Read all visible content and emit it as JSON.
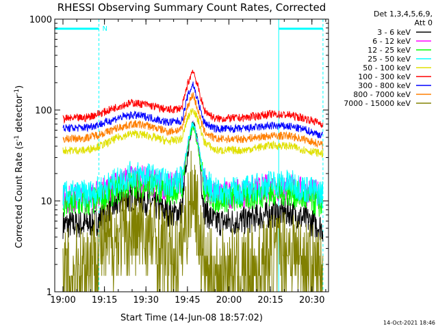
{
  "chart_data": {
    "type": "line",
    "title": "RHESSI Observing Summary Count Rates, Corrected",
    "xlabel": "Start Time (14-Jun-08 18:57:02)",
    "ylabel_main": "Corrected Count Rate (s",
    "ylabel_sup1": "-1",
    "ylabel_mid": " detector",
    "ylabel_sup2": "-1",
    "ylabel_end": ")",
    "y_scale": "log",
    "ylim": [
      1,
      1000
    ],
    "xlim": [
      "18:57:02",
      "20:36:00"
    ],
    "x_ticks": [
      "19:00",
      "19:15",
      "19:30",
      "19:45",
      "20:00",
      "20:15",
      "20:30"
    ],
    "y_ticks": [
      "1",
      "10",
      "100",
      "1000"
    ],
    "legend_header": [
      "Det 1,3,4,5,6,9,",
      "Att 0"
    ],
    "legend_position": "right",
    "grid": false,
    "footer_timestamp": "14-Oct-2021 18:46",
    "attenuator_flag": "N",
    "night_intervals": [
      [
        "18:57:02",
        "19:13:00"
      ],
      [
        "20:18:00",
        "20:34:00"
      ]
    ],
    "series": [
      {
        "name": "3 - 6 keV",
        "color": "#000000",
        "points": [
          [
            "19:00",
            5.5
          ],
          [
            "19:08",
            5.5
          ],
          [
            "19:12",
            5.8
          ],
          [
            "19:18",
            8.5
          ],
          [
            "19:25",
            11
          ],
          [
            "19:30",
            10
          ],
          [
            "19:36",
            8
          ],
          [
            "19:40",
            7
          ],
          [
            "19:43",
            8
          ],
          [
            "19:45",
            30
          ],
          [
            "19:47",
            82
          ],
          [
            "19:49",
            40
          ],
          [
            "19:51",
            8
          ],
          [
            "19:55",
            5.8
          ],
          [
            "20:05",
            6
          ],
          [
            "20:15",
            7.2
          ],
          [
            "20:22",
            7.5
          ],
          [
            "20:28",
            6.2
          ],
          [
            "20:34",
            5
          ]
        ]
      },
      {
        "name": "6 - 12 keV",
        "color": "#ff00ff",
        "points": [
          [
            "19:00",
            10.5
          ],
          [
            "19:10",
            11
          ],
          [
            "19:18",
            14
          ],
          [
            "19:25",
            18
          ],
          [
            "19:30",
            17
          ],
          [
            "19:38",
            14
          ],
          [
            "19:43",
            16
          ],
          [
            "19:45",
            40
          ],
          [
            "19:47",
            70
          ],
          [
            "19:49",
            40
          ],
          [
            "19:51",
            16
          ],
          [
            "19:55",
            11.5
          ],
          [
            "20:05",
            12
          ],
          [
            "20:15",
            14
          ],
          [
            "20:22",
            14
          ],
          [
            "20:28",
            12.5
          ],
          [
            "20:34",
            11.5
          ]
        ]
      },
      {
        "name": "12 - 25 keV",
        "color": "#00ff00",
        "points": [
          [
            "19:00",
            9
          ],
          [
            "19:10",
            9.5
          ],
          [
            "19:18",
            12.5
          ],
          [
            "19:25",
            15.5
          ],
          [
            "19:30",
            15
          ],
          [
            "19:38",
            12.5
          ],
          [
            "19:43",
            14
          ],
          [
            "19:45",
            38
          ],
          [
            "19:47",
            68
          ],
          [
            "19:49",
            38
          ],
          [
            "19:51",
            14
          ],
          [
            "19:55",
            10.5
          ],
          [
            "20:05",
            11
          ],
          [
            "20:15",
            12.5
          ],
          [
            "20:22",
            12.5
          ],
          [
            "20:28",
            10.5
          ],
          [
            "20:34",
            9
          ]
        ]
      },
      {
        "name": "25 - 50 keV",
        "color": "#00ffff",
        "points": [
          [
            "19:00",
            11.5
          ],
          [
            "19:10",
            12
          ],
          [
            "19:18",
            15.5
          ],
          [
            "19:25",
            19.5
          ],
          [
            "19:30",
            19
          ],
          [
            "19:38",
            15.5
          ],
          [
            "19:43",
            17
          ],
          [
            "19:45",
            42
          ],
          [
            "19:47",
            75
          ],
          [
            "19:49",
            42
          ],
          [
            "19:51",
            17
          ],
          [
            "19:55",
            12.5
          ],
          [
            "20:05",
            13
          ],
          [
            "20:15",
            15.5
          ],
          [
            "20:22",
            15.5
          ],
          [
            "20:28",
            13.5
          ],
          [
            "20:34",
            12
          ]
        ]
      },
      {
        "name": "50 - 100 keV",
        "color": "#e0e000",
        "points": [
          [
            "19:00",
            36
          ],
          [
            "19:08",
            36
          ],
          [
            "19:15",
            42
          ],
          [
            "19:20",
            50
          ],
          [
            "19:25",
            55
          ],
          [
            "19:30",
            53
          ],
          [
            "19:38",
            45
          ],
          [
            "19:43",
            48
          ],
          [
            "19:45",
            80
          ],
          [
            "19:47",
            105
          ],
          [
            "19:49",
            75
          ],
          [
            "19:51",
            45
          ],
          [
            "19:55",
            36
          ],
          [
            "20:05",
            36
          ],
          [
            "20:15",
            41
          ],
          [
            "20:22",
            40
          ],
          [
            "20:28",
            36
          ],
          [
            "20:34",
            33
          ]
        ]
      },
      {
        "name": "100 - 300 keV",
        "color": "#ff0000",
        "points": [
          [
            "19:00",
            80
          ],
          [
            "19:08",
            82
          ],
          [
            "19:15",
            95
          ],
          [
            "19:20",
            110
          ],
          [
            "19:25",
            120
          ],
          [
            "19:30",
            115
          ],
          [
            "19:38",
            100
          ],
          [
            "19:43",
            105
          ],
          [
            "19:45",
            190
          ],
          [
            "19:47",
            280
          ],
          [
            "19:49",
            170
          ],
          [
            "19:51",
            100
          ],
          [
            "19:55",
            80
          ],
          [
            "20:05",
            82
          ],
          [
            "20:15",
            90
          ],
          [
            "20:22",
            88
          ],
          [
            "20:28",
            80
          ],
          [
            "20:34",
            70
          ]
        ]
      },
      {
        "name": "300 - 800 keV",
        "color": "#0000ff",
        "points": [
          [
            "19:00",
            63
          ],
          [
            "19:08",
            64
          ],
          [
            "19:15",
            72
          ],
          [
            "19:20",
            82
          ],
          [
            "19:25",
            88
          ],
          [
            "19:30",
            85
          ],
          [
            "19:38",
            73
          ],
          [
            "19:43",
            76
          ],
          [
            "19:45",
            140
          ],
          [
            "19:47",
            195
          ],
          [
            "19:49",
            120
          ],
          [
            "19:51",
            73
          ],
          [
            "19:55",
            62
          ],
          [
            "20:05",
            62
          ],
          [
            "20:15",
            67
          ],
          [
            "20:22",
            66
          ],
          [
            "20:28",
            60
          ],
          [
            "20:34",
            52
          ]
        ]
      },
      {
        "name": "800 - 7000 keV",
        "color": "#ff7f00",
        "points": [
          [
            "19:00",
            48
          ],
          [
            "19:08",
            49
          ],
          [
            "19:15",
            56
          ],
          [
            "19:20",
            64
          ],
          [
            "19:25",
            70
          ],
          [
            "19:30",
            68
          ],
          [
            "19:38",
            58
          ],
          [
            "19:43",
            61
          ],
          [
            "19:45",
            110
          ],
          [
            "19:47",
            150
          ],
          [
            "19:49",
            95
          ],
          [
            "19:51",
            58
          ],
          [
            "19:55",
            48
          ],
          [
            "20:05",
            48
          ],
          [
            "20:15",
            52
          ],
          [
            "20:22",
            52
          ],
          [
            "20:28",
            47
          ],
          [
            "20:34",
            41
          ]
        ]
      },
      {
        "name": "7000 - 15000 keV",
        "color": "#808000",
        "points": [
          [
            "19:00",
            1.5
          ],
          [
            "19:06",
            1.8
          ],
          [
            "19:10",
            2.4
          ],
          [
            "19:13",
            3
          ],
          [
            "19:18",
            3.6
          ],
          [
            "19:22",
            4.3
          ],
          [
            "19:28",
            4.5
          ],
          [
            "19:33",
            3.8
          ],
          [
            "19:38",
            2.6
          ],
          [
            "19:42",
            2.2
          ],
          [
            "19:44",
            5
          ],
          [
            "19:46",
            10
          ],
          [
            "19:47",
            15
          ],
          [
            "19:48",
            10
          ],
          [
            "19:50",
            3
          ],
          [
            "19:52",
            1.5
          ],
          [
            "20:00",
            1.6
          ],
          [
            "20:10",
            1.7
          ],
          [
            "20:16",
            2.5
          ],
          [
            "20:22",
            3
          ],
          [
            "20:28",
            2
          ],
          [
            "20:34",
            1.5
          ]
        ]
      }
    ]
  }
}
